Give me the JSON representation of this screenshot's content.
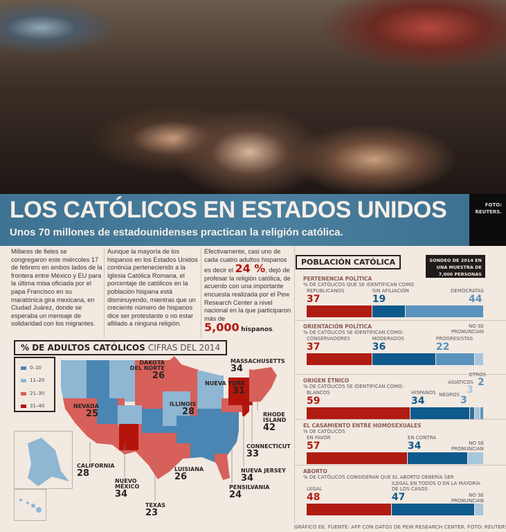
{
  "header": {
    "title": "LOS CATÓLICOS EN ESTADOS UNIDOS",
    "subtitle": "Unos 70 millones de estadounidenses practican la religión católica.",
    "photo_credit": "FOTO: REUTERS."
  },
  "columns": [
    "Millares de fieles se congregaron este miércoles 17 de febrero en ambos lados de la frontera entre México y EU para la última misa oficiada por el papa Francisco en su maratónica gira mexicana, en Ciudad Juárez, donde se esperaba un mensaje de solidaridad con los migrantes.",
    "Aunque la mayoría de los hispanos en los Estados Unidos continúa perteneciendo a la Iglesia Católica Romana, el porcentaje de católicos en la población hispana está disminuyendo, mientras que un creciente número de hispanos dice ser protestante o no estar afiliado a ninguna religión."
  ],
  "col3": {
    "a": "Efectivamente, casi uno de cada cuatro adultos hispanos es decir el",
    "pct": "24 %",
    "b": ", dejó de profesar la religión católica, de acuerdo con una importante encuesta realizada por el Pew Research Center a nivel nacional en la que participaron más de",
    "count": "5,000",
    "c": "hispanos",
    "d": "."
  },
  "map": {
    "title": "% DE ADULTOS CATÓLICOS",
    "title_light": "CIFRAS DEL 2014",
    "legend": [
      {
        "label": "0–10",
        "color": "#4a86b3"
      },
      {
        "label": "11–20",
        "color": "#8fb6d3"
      },
      {
        "label": "21–30",
        "color": "#d7605a"
      },
      {
        "label": "31–40",
        "color": "#b3150c"
      }
    ],
    "states": [
      {
        "name": "DAKOTA DEL NORTE",
        "value": "26"
      },
      {
        "name": "MASSACHUSETTS",
        "value": "34"
      },
      {
        "name": "NUEVA YORK",
        "value": "31"
      },
      {
        "name": "NEVADA",
        "value": "25"
      },
      {
        "name": "ILLINOIS",
        "value": "28"
      },
      {
        "name": "RHODE ISLAND",
        "value": "42"
      },
      {
        "name": "CONNECTICUT",
        "value": "33"
      },
      {
        "name": "CALIFORNIA",
        "value": "28"
      },
      {
        "name": "LUISIANA",
        "value": "26"
      },
      {
        "name": "NUEVA JERSEY",
        "value": "34"
      },
      {
        "name": "NUEVO MÉXICO",
        "value": "34"
      },
      {
        "name": "PENSILVANIA",
        "value": "24"
      },
      {
        "name": "TEXAS",
        "value": "23"
      }
    ]
  },
  "panel": {
    "title": "POBLACIÓN CATÓLICA",
    "survey": "SONDEO DE 2014 EN UNA MUESTRA DE 7,000 PERSONAS"
  },
  "colors": {
    "red": "#b01c12",
    "blue": "#0f5a8c",
    "light": "#5a93bd",
    "pale": "#a7c6dc"
  },
  "chart_data": [
    {
      "type": "bar",
      "title": "PERTENENCIA POLÍTICA",
      "subtitle": "% DE CATÓLICOS QUE SE IDENTIFICAN COMO",
      "categories": [
        "REPUBLICANOS",
        "SIN AFILIACIÓN",
        "DEMÓCRATAS"
      ],
      "values": [
        37,
        19,
        44
      ]
    },
    {
      "type": "bar",
      "title": "ORIENTACIÓN POLÍTICA",
      "subtitle": "% DE CATÓLICOS SE IDENTIFICAN COMO:",
      "categories": [
        "CONSERVADORES",
        "MODERADOS",
        "PROGRESISTAS",
        "NO SE PRONUNCIAN"
      ],
      "values": [
        37,
        36,
        22,
        5
      ]
    },
    {
      "type": "bar",
      "title": "ORIGEN ÉTNICO",
      "subtitle": "% DE CATÓLICOS SE IDENTIFICAN COMO:",
      "categories": [
        "BLANCOS",
        "HISPANOS",
        "NEGROS",
        "ASIÁTICOS",
        "OTROS"
      ],
      "values": [
        59,
        34,
        3,
        3,
        2
      ]
    },
    {
      "type": "bar",
      "title": "EL CASAMIENTO ENTRE HOMOSEXUALES",
      "subtitle": "% DE CATÓLICOS",
      "categories": [
        "EN FAVOR",
        "EN CONTRA",
        "NO SE PRONUNCIAN"
      ],
      "values": [
        57,
        34,
        9
      ]
    },
    {
      "type": "bar",
      "title": "ABORTO",
      "subtitle": "% DE CATÓLICOS CONSIDERAN QUE EL ABORTO DEBERÍA SER",
      "categories": [
        "LEGAL",
        "ILEGAL EN TODOS O EN LA MAYORÍA DE LOS CASOS",
        "NO SE PRONUNCIAN"
      ],
      "values": [
        48,
        47,
        5
      ]
    }
  ],
  "footer": "GRÁFICO EE. FUENTE: AFP CON DATOS DE PEW RESEARCH CENTER. FOTO: REUTERS."
}
